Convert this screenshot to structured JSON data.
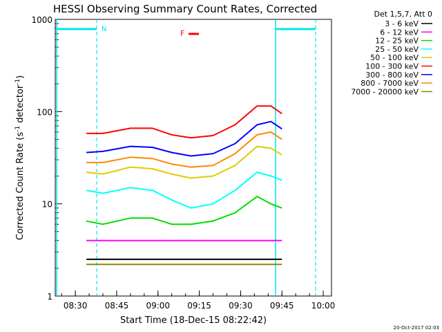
{
  "chart_data": {
    "type": "line",
    "title": "HESSI Observing Summary Count Rates, Corrected",
    "xlabel": "Start Time (18-Dec-15 08:22:42)",
    "ylabel": "Corrected Count Rate (s",
    "ylabel_sup1": "-1",
    "ylabel_mid": " detector",
    "ylabel_sup2": "-1",
    "ylabel_end": ")",
    "y_scale": "log",
    "ylim": [
      1,
      1000
    ],
    "xlim": [
      "08:22:42",
      "10:03:00"
    ],
    "x_ticks": [
      "08:30",
      "08:45",
      "09:00",
      "09:15",
      "09:30",
      "09:45",
      "10:00"
    ],
    "y_ticks": [
      "1",
      "10",
      "100",
      "1000"
    ],
    "legend_title": "Det 1,5,7, Att 0",
    "legend_position": "top-right",
    "timestamp": "20-Oct-2017 02:03",
    "flag_label": "F",
    "night_label": "N",
    "colors": {
      "markers": "#00e5ee",
      "flag": "#ff0000"
    },
    "series": [
      {
        "name": "3 - 6 keV",
        "color": "#000000",
        "values": [
          2.5,
          2.5,
          2.5,
          2.5,
          2.5,
          2.5,
          2.5,
          2.5,
          2.5,
          2.5,
          2.5
        ]
      },
      {
        "name": "6 - 12 keV",
        "color": "#ff00ff",
        "values": [
          4,
          4,
          4,
          4,
          4,
          4,
          4,
          4,
          4,
          4,
          4
        ]
      },
      {
        "name": "12 - 25 keV",
        "color": "#00dd00",
        "values": [
          6.5,
          6,
          7,
          7,
          6,
          6,
          6.5,
          8,
          12,
          10,
          9
        ]
      },
      {
        "name": "25 - 50 keV",
        "color": "#00ffff",
        "values": [
          14,
          13,
          15,
          14,
          11,
          9,
          10,
          14,
          22,
          20,
          18
        ]
      },
      {
        "name": "50 - 100 keV",
        "color": "#ddcc00",
        "values": [
          22,
          21,
          25,
          24,
          21,
          19,
          20,
          26,
          42,
          40,
          34
        ]
      },
      {
        "name": "100 - 300 keV",
        "color": "#ff0000",
        "values": [
          58,
          58,
          66,
          66,
          56,
          52,
          55,
          72,
          115,
          115,
          95
        ]
      },
      {
        "name": "300 - 800 keV",
        "color": "#0000ff",
        "values": [
          36,
          37,
          42,
          41,
          36,
          33,
          35,
          45,
          72,
          78,
          65
        ]
      },
      {
        "name": "800 - 7000 keV",
        "color": "#ff8800",
        "values": [
          28,
          28,
          32,
          31,
          27,
          25,
          26,
          35,
          56,
          60,
          50
        ]
      },
      {
        "name": "7000 - 20000 keV",
        "color": "#888800",
        "values": [
          2.2,
          2.2,
          2.2,
          2.2,
          2.2,
          2.2,
          2.2,
          2.2,
          2.2,
          2.2,
          2.2
        ]
      }
    ],
    "x": [
      "08:34",
      "08:40",
      "08:50",
      "08:58",
      "09:05",
      "09:12",
      "09:20",
      "09:28",
      "09:36",
      "09:41",
      "09:45"
    ]
  }
}
